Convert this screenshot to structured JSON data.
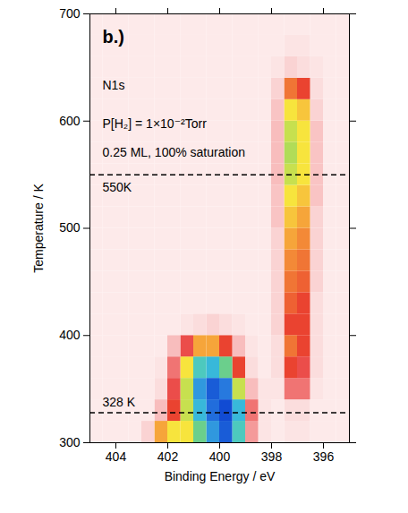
{
  "chart_data": {
    "type": "heatmap",
    "title": "b.)",
    "annotations_text": [
      "N1s",
      "P[H₂] = 1×10⁻²Torr",
      "0.25 ML, 100% saturation"
    ],
    "x_label": "Binding Energy / eV",
    "y_label": "Temperature / K",
    "xlim": [
      405,
      395
    ],
    "ylim": [
      300,
      700
    ],
    "xticks": [
      404,
      402,
      400,
      398,
      396
    ],
    "yticks": [
      300,
      400,
      500,
      600,
      700
    ],
    "reference_lines": [
      {
        "y": 550,
        "label": "550K"
      },
      {
        "y": 328,
        "label": "328 K"
      }
    ],
    "x": [
      395.25,
      395.75,
      396.25,
      396.75,
      397.25,
      397.75,
      398.25,
      398.75,
      399.25,
      399.75,
      400.25,
      400.75,
      401.25,
      401.75,
      402.25,
      402.75,
      403.25,
      403.75,
      404.25,
      404.75
    ],
    "y": [
      310,
      330,
      350,
      370,
      390,
      410,
      430,
      450,
      470,
      490,
      510,
      530,
      550,
      570,
      590,
      610,
      630,
      650,
      670,
      690
    ],
    "zlim": [
      0,
      1
    ],
    "z": [
      [
        0.06,
        0.06,
        0.06,
        0.08,
        0.08,
        0.06,
        0.08,
        0.2,
        0.75,
        0.95,
        0.85,
        0.7,
        0.55,
        0.55,
        0.45,
        0.12,
        0.06,
        0.06,
        0.06,
        0.06
      ],
      [
        0.06,
        0.06,
        0.06,
        0.1,
        0.1,
        0.06,
        0.08,
        0.25,
        0.8,
        0.98,
        0.92,
        0.8,
        0.6,
        0.35,
        0.15,
        0.06,
        0.06,
        0.06,
        0.06,
        0.06
      ],
      [
        0.06,
        0.06,
        0.08,
        0.25,
        0.25,
        0.08,
        0.08,
        0.15,
        0.6,
        0.9,
        0.95,
        0.85,
        0.6,
        0.3,
        0.1,
        0.06,
        0.06,
        0.06,
        0.06,
        0.06
      ],
      [
        0.06,
        0.06,
        0.1,
        0.3,
        0.35,
        0.1,
        0.06,
        0.1,
        0.35,
        0.7,
        0.8,
        0.75,
        0.55,
        0.25,
        0.08,
        0.06,
        0.06,
        0.06,
        0.06,
        0.06
      ],
      [
        0.06,
        0.06,
        0.1,
        0.35,
        0.4,
        0.1,
        0.06,
        0.08,
        0.15,
        0.35,
        0.45,
        0.45,
        0.3,
        0.15,
        0.06,
        0.06,
        0.06,
        0.06,
        0.06,
        0.06
      ],
      [
        0.06,
        0.06,
        0.1,
        0.35,
        0.35,
        0.12,
        0.06,
        0.06,
        0.08,
        0.1,
        0.12,
        0.1,
        0.08,
        0.06,
        0.06,
        0.06,
        0.06,
        0.06,
        0.06,
        0.06
      ],
      [
        0.06,
        0.06,
        0.1,
        0.35,
        0.38,
        0.12,
        0.06,
        0.06,
        0.06,
        0.06,
        0.06,
        0.06,
        0.06,
        0.06,
        0.06,
        0.06,
        0.06,
        0.06,
        0.06,
        0.06
      ],
      [
        0.06,
        0.06,
        0.12,
        0.38,
        0.4,
        0.12,
        0.06,
        0.06,
        0.06,
        0.06,
        0.06,
        0.06,
        0.06,
        0.06,
        0.06,
        0.06,
        0.06,
        0.06,
        0.06,
        0.06
      ],
      [
        0.06,
        0.06,
        0.12,
        0.4,
        0.42,
        0.12,
        0.06,
        0.06,
        0.06,
        0.06,
        0.06,
        0.06,
        0.06,
        0.06,
        0.06,
        0.06,
        0.06,
        0.06,
        0.06,
        0.06
      ],
      [
        0.06,
        0.06,
        0.12,
        0.42,
        0.45,
        0.12,
        0.06,
        0.06,
        0.06,
        0.06,
        0.06,
        0.06,
        0.06,
        0.06,
        0.06,
        0.06,
        0.06,
        0.06,
        0.06,
        0.06
      ],
      [
        0.06,
        0.06,
        0.12,
        0.45,
        0.5,
        0.14,
        0.06,
        0.06,
        0.06,
        0.06,
        0.06,
        0.06,
        0.06,
        0.06,
        0.06,
        0.06,
        0.06,
        0.06,
        0.06,
        0.06
      ],
      [
        0.06,
        0.06,
        0.14,
        0.5,
        0.55,
        0.14,
        0.06,
        0.06,
        0.06,
        0.06,
        0.06,
        0.06,
        0.06,
        0.06,
        0.06,
        0.06,
        0.06,
        0.06,
        0.06,
        0.06
      ],
      [
        0.06,
        0.06,
        0.14,
        0.55,
        0.6,
        0.15,
        0.06,
        0.06,
        0.06,
        0.06,
        0.06,
        0.06,
        0.06,
        0.06,
        0.06,
        0.06,
        0.06,
        0.06,
        0.06,
        0.06
      ],
      [
        0.06,
        0.06,
        0.14,
        0.55,
        0.62,
        0.15,
        0.06,
        0.06,
        0.06,
        0.06,
        0.06,
        0.06,
        0.06,
        0.06,
        0.06,
        0.06,
        0.06,
        0.06,
        0.06,
        0.06
      ],
      [
        0.06,
        0.06,
        0.14,
        0.55,
        0.6,
        0.15,
        0.06,
        0.06,
        0.06,
        0.06,
        0.06,
        0.06,
        0.06,
        0.06,
        0.06,
        0.06,
        0.06,
        0.06,
        0.06,
        0.06
      ],
      [
        0.06,
        0.06,
        0.12,
        0.5,
        0.55,
        0.14,
        0.06,
        0.06,
        0.06,
        0.06,
        0.06,
        0.06,
        0.06,
        0.06,
        0.06,
        0.06,
        0.06,
        0.06,
        0.06,
        0.06
      ],
      [
        0.06,
        0.06,
        0.1,
        0.35,
        0.4,
        0.12,
        0.06,
        0.06,
        0.06,
        0.06,
        0.06,
        0.06,
        0.06,
        0.06,
        0.06,
        0.06,
        0.06,
        0.06,
        0.06,
        0.06
      ],
      [
        0.06,
        0.06,
        0.08,
        0.1,
        0.12,
        0.08,
        0.06,
        0.06,
        0.06,
        0.06,
        0.06,
        0.06,
        0.06,
        0.06,
        0.06,
        0.06,
        0.06,
        0.06,
        0.06,
        0.06
      ],
      [
        0.06,
        0.06,
        0.06,
        0.08,
        0.08,
        0.06,
        0.06,
        0.06,
        0.06,
        0.06,
        0.06,
        0.06,
        0.06,
        0.06,
        0.06,
        0.06,
        0.06,
        0.06,
        0.06,
        0.06
      ],
      [
        0.06,
        0.06,
        0.06,
        0.06,
        0.06,
        0.06,
        0.06,
        0.06,
        0.06,
        0.06,
        0.06,
        0.06,
        0.06,
        0.06,
        0.06,
        0.06,
        0.06,
        0.06,
        0.06,
        0.06
      ]
    ]
  }
}
